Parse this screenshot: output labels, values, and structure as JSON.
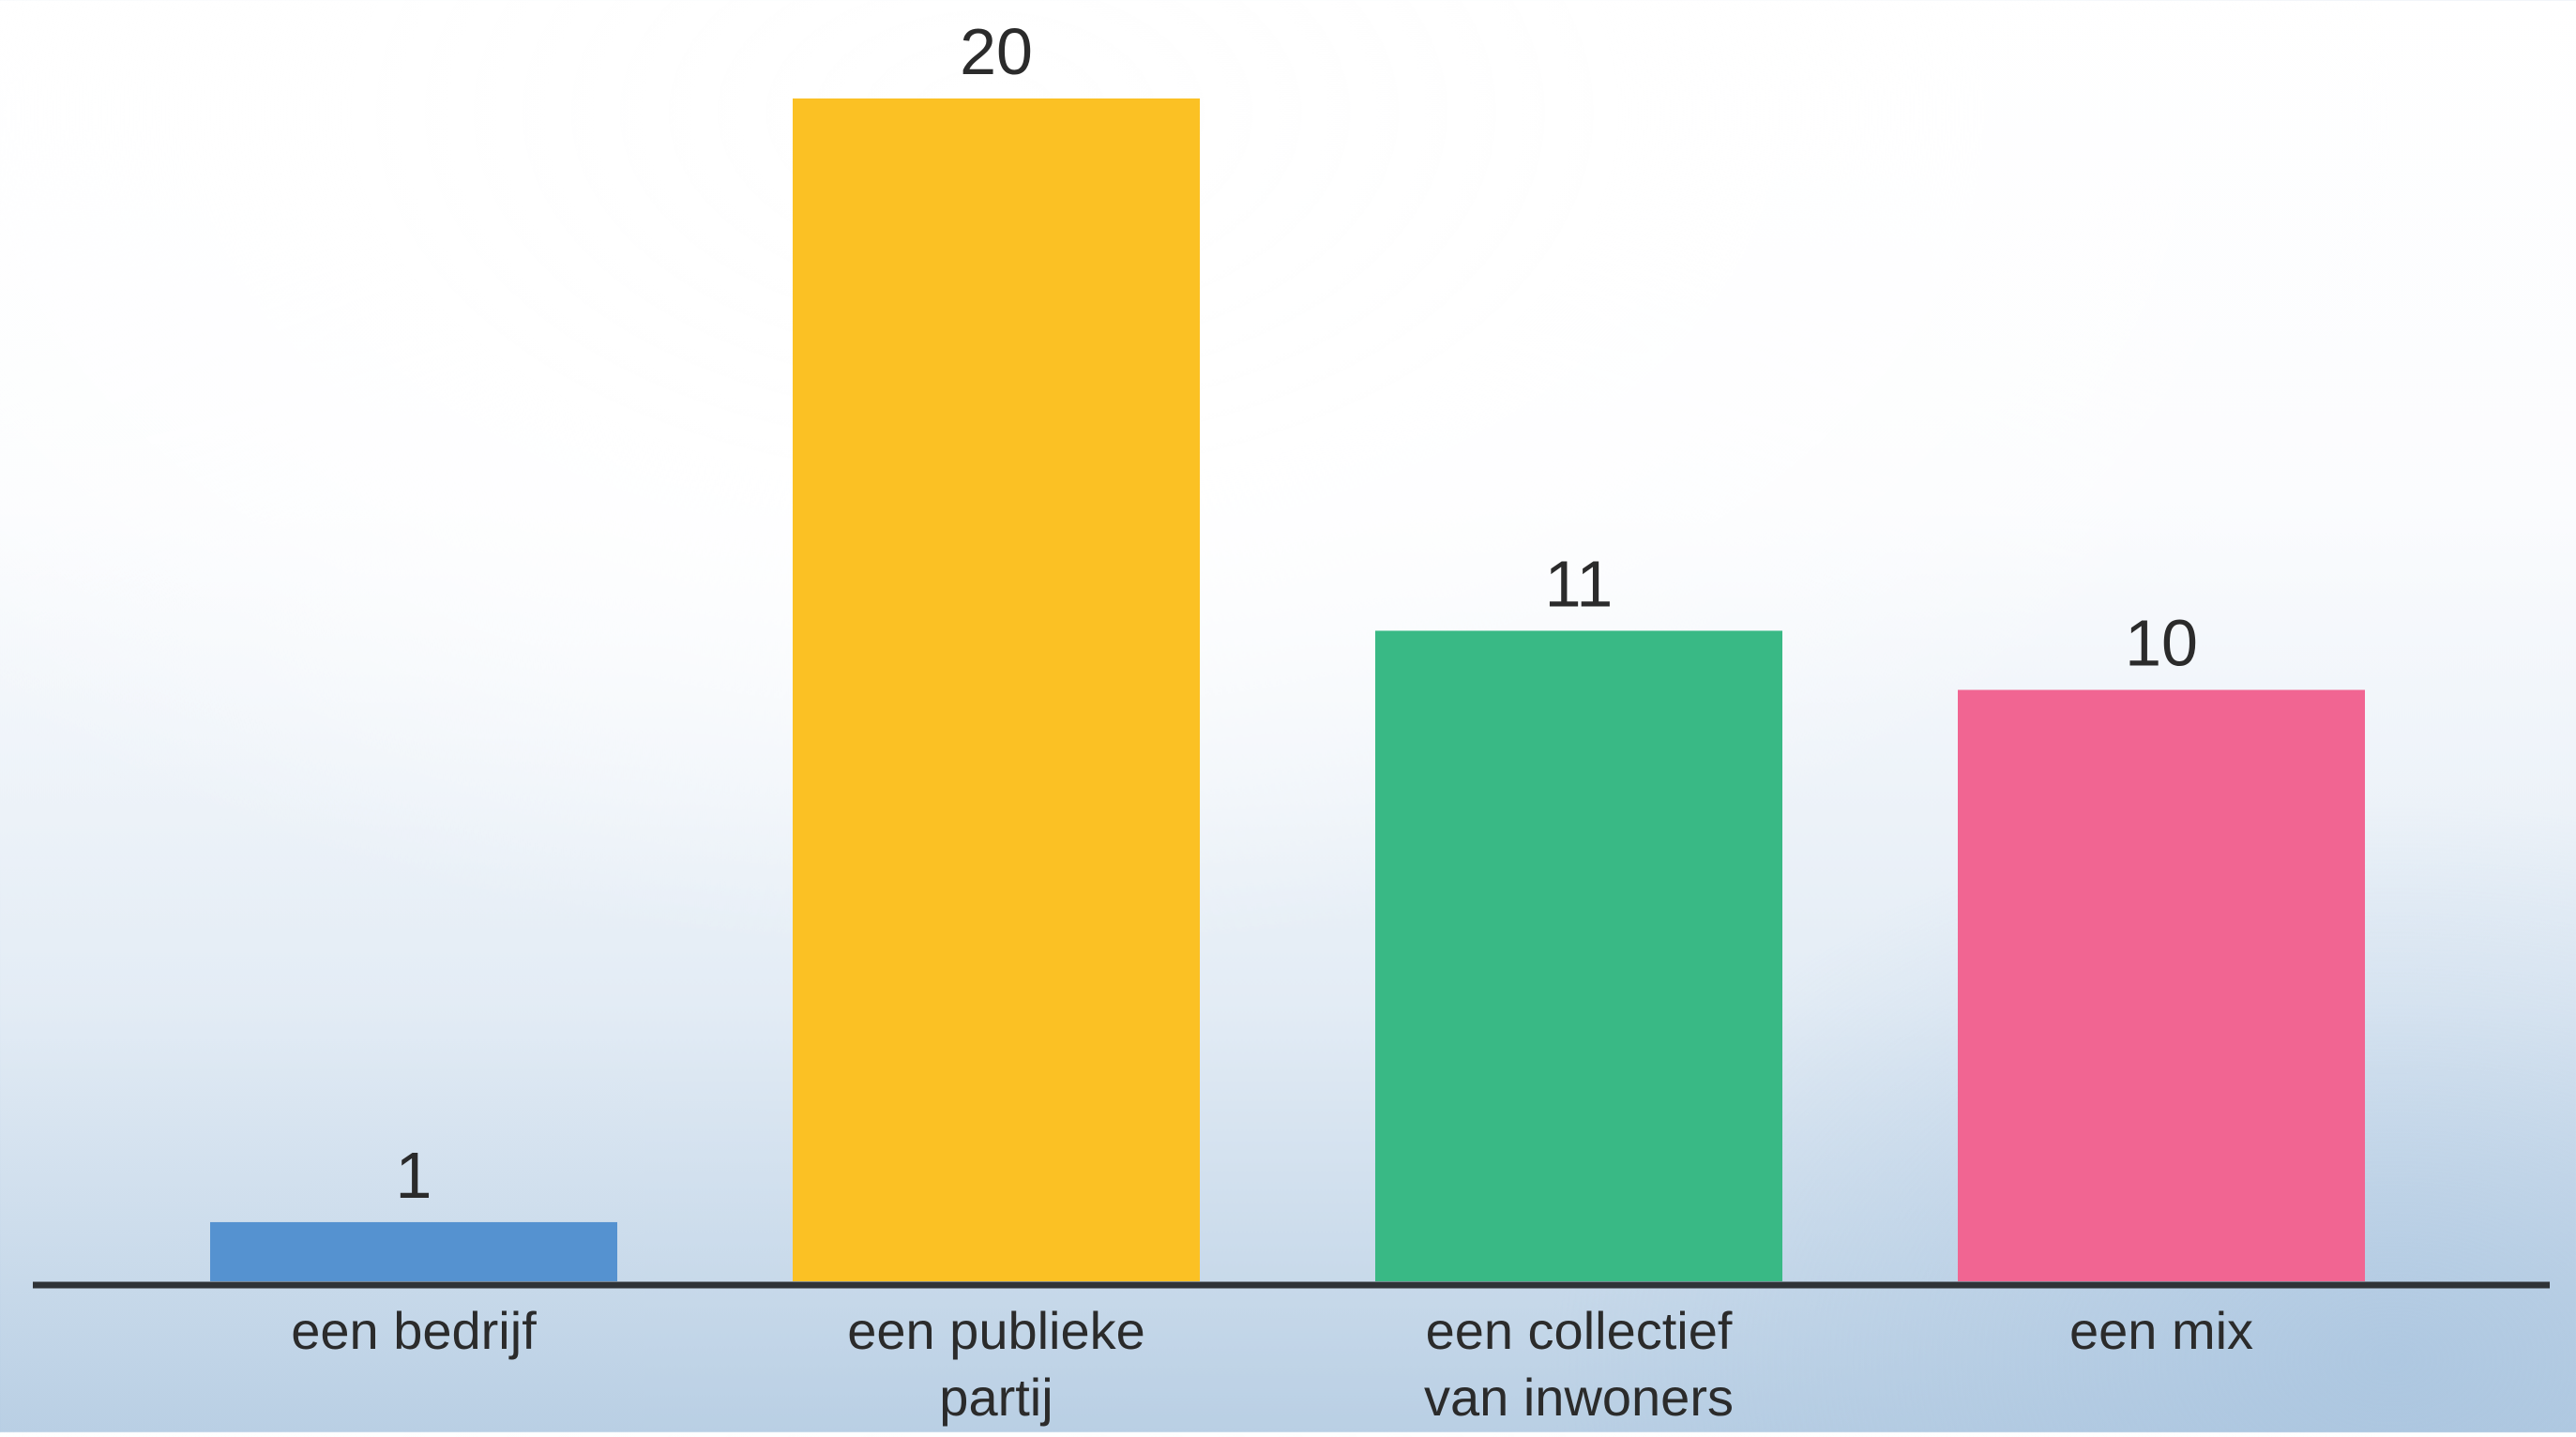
{
  "chart_data": {
    "type": "bar",
    "categories": [
      [
        "een bedrijf"
      ],
      [
        "een publieke",
        "partij"
      ],
      [
        "een collectief",
        "van inwoners"
      ],
      [
        "een mix"
      ]
    ],
    "values": [
      1,
      20,
      11,
      10
    ],
    "data_labels": [
      "1",
      "20",
      "11",
      "10"
    ],
    "colors": [
      "#5592d0",
      "#fbc124",
      "#39b985",
      "#f16592"
    ],
    "axis_color": "#2f3337",
    "title": "",
    "xlabel": "",
    "ylabel": "",
    "ylim": [
      0,
      20
    ],
    "grid": false,
    "legend": "none"
  }
}
